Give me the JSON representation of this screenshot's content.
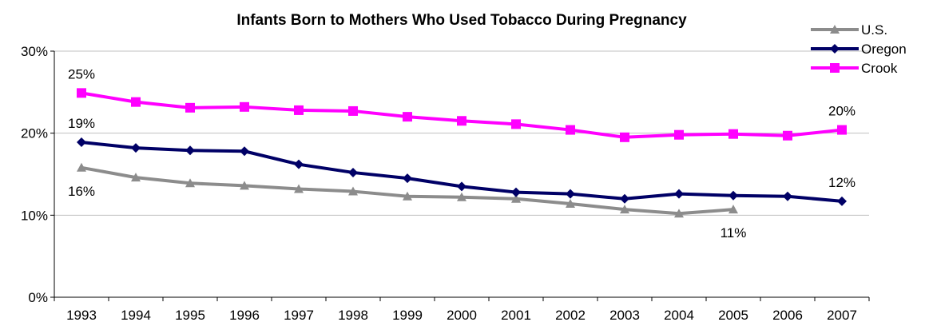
{
  "chart_data": {
    "type": "line",
    "title": "Infants Born to Mothers Who Used Tobacco During Pregnancy",
    "xlabel": "",
    "ylabel": "",
    "categories": [
      "1993",
      "1994",
      "1995",
      "1996",
      "1997",
      "1998",
      "1999",
      "2000",
      "2001",
      "2002",
      "2003",
      "2004",
      "2005",
      "2006",
      "2007"
    ],
    "ylim": [
      0,
      30
    ],
    "yticks": [
      "0%",
      "10%",
      "20%",
      "30%"
    ],
    "grid": true,
    "legend_position": "top-right",
    "series": [
      {
        "name": "U.S.",
        "color": "#8c8c8c",
        "marker": "triangle",
        "values": [
          15.8,
          14.6,
          13.9,
          13.6,
          13.2,
          12.9,
          12.3,
          12.2,
          12.0,
          11.4,
          10.7,
          10.2,
          10.7,
          null,
          null
        ]
      },
      {
        "name": "Oregon",
        "color": "#000066",
        "marker": "diamond",
        "values": [
          18.9,
          18.2,
          17.9,
          17.8,
          16.2,
          15.2,
          14.5,
          13.5,
          12.8,
          12.6,
          12.0,
          12.6,
          12.4,
          12.3,
          11.7
        ]
      },
      {
        "name": "Crook",
        "color": "#ff00ff",
        "marker": "square",
        "values": [
          24.9,
          23.8,
          23.1,
          23.2,
          22.8,
          22.7,
          22.0,
          21.5,
          21.1,
          20.4,
          19.5,
          19.8,
          19.9,
          19.7,
          20.4
        ]
      }
    ],
    "annotations": [
      {
        "series": 2,
        "index": 0,
        "text": "25%",
        "pos": "above"
      },
      {
        "series": 2,
        "index": 14,
        "text": "20%",
        "pos": "above"
      },
      {
        "series": 1,
        "index": 0,
        "text": "19%",
        "pos": "above"
      },
      {
        "series": 1,
        "index": 14,
        "text": "12%",
        "pos": "above"
      },
      {
        "series": 0,
        "index": 0,
        "text": "16%",
        "pos": "below"
      },
      {
        "series": 0,
        "index": 12,
        "text": "11%",
        "pos": "below"
      }
    ]
  }
}
